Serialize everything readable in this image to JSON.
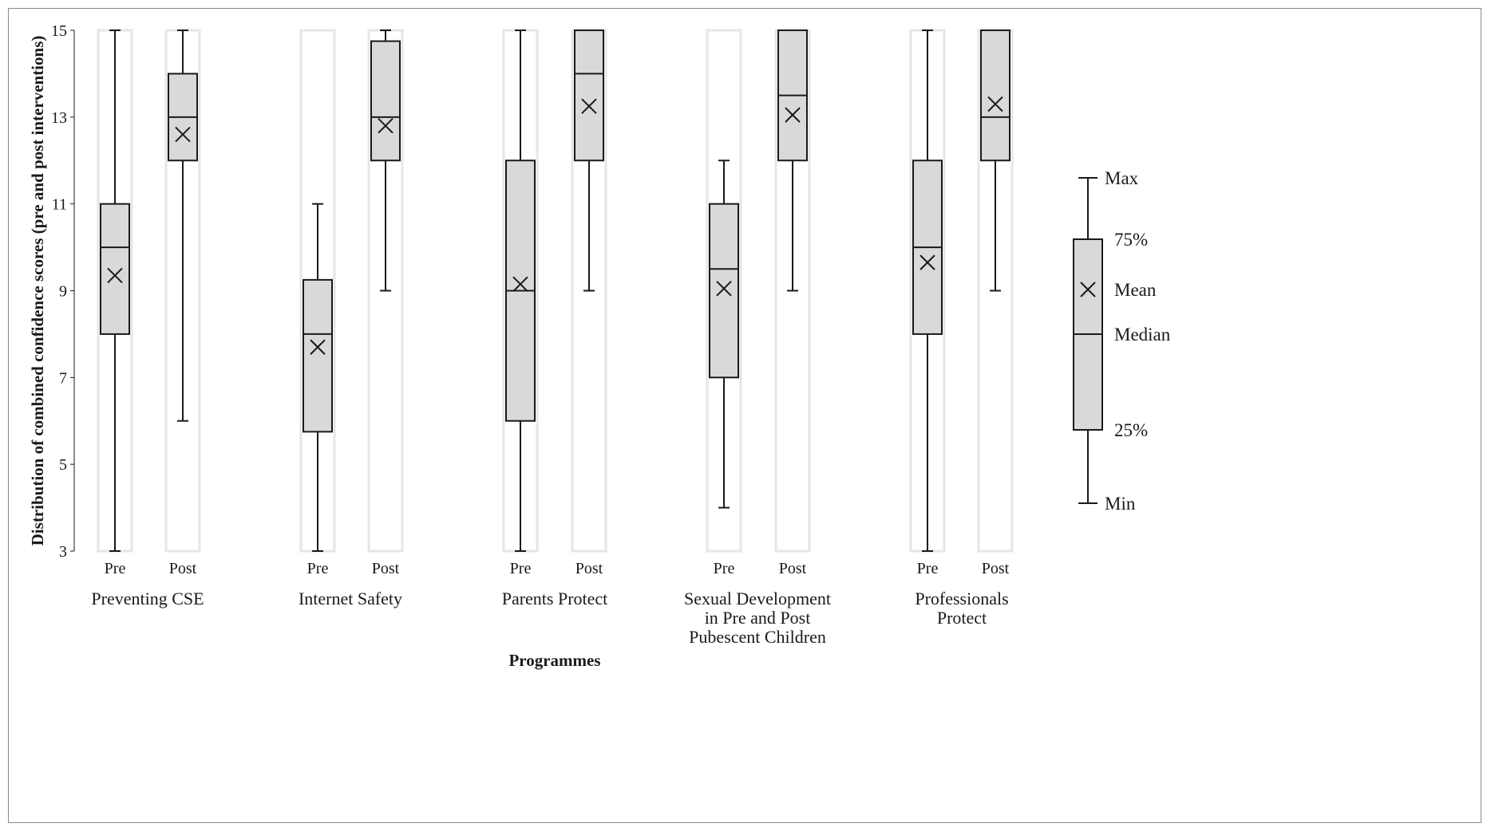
{
  "chart_data": {
    "type": "boxplot",
    "ylabel": "Distribution of combined confidence scores (pre and post interventions)",
    "xlabel": "Programmes",
    "ylim": [
      3,
      15
    ],
    "yticks": [
      3,
      5,
      7,
      9,
      11,
      13,
      15
    ],
    "groups": [
      {
        "label": [
          "Preventing CSE"
        ],
        "boxes": [
          {
            "label": "Pre",
            "min": 3,
            "q1": 8,
            "median": 10,
            "q3": 11,
            "max": 15,
            "mean": 9.35
          },
          {
            "label": "Post",
            "min": 6,
            "q1": 12,
            "median": 13,
            "q3": 14,
            "max": 15,
            "mean": 12.6
          }
        ]
      },
      {
        "label": [
          "Internet Safety"
        ],
        "boxes": [
          {
            "label": "Pre",
            "min": 3,
            "q1": 5.75,
            "median": 8,
            "q3": 9.25,
            "max": 11,
            "mean": 7.7
          },
          {
            "label": "Post",
            "min": 9,
            "q1": 12,
            "median": 13,
            "q3": 14.75,
            "max": 15,
            "mean": 12.8
          }
        ]
      },
      {
        "label": [
          "Parents Protect"
        ],
        "boxes": [
          {
            "label": "Pre",
            "min": 3,
            "q1": 6,
            "median": 9,
            "q3": 12,
            "max": 15,
            "mean": 9.15
          },
          {
            "label": "Post",
            "min": 9,
            "q1": 12,
            "median": 14,
            "q3": 15,
            "max": 15,
            "mean": 13.25
          }
        ]
      },
      {
        "label": [
          "Sexual Development",
          "in Pre and Post",
          "Pubescent Children"
        ],
        "boxes": [
          {
            "label": "Pre",
            "min": 4,
            "q1": 7,
            "median": 9.5,
            "q3": 11,
            "max": 12,
            "mean": 9.05
          },
          {
            "label": "Post",
            "min": 9,
            "q1": 12,
            "median": 13.5,
            "q3": 15,
            "max": 15,
            "mean": 13.05
          }
        ]
      },
      {
        "label": [
          "Professionals",
          "Protect"
        ],
        "boxes": [
          {
            "label": "Pre",
            "min": 3,
            "q1": 8,
            "median": 10,
            "q3": 12,
            "max": 15,
            "mean": 9.65
          },
          {
            "label": "Post",
            "min": 9,
            "q1": 12,
            "median": 13,
            "q3": 15,
            "max": 15,
            "mean": 13.3
          }
        ]
      }
    ],
    "legend": {
      "position": "right",
      "labels": {
        "max": "Max",
        "q3": "75%",
        "mean": "Mean",
        "median": "Median",
        "q1": "25%",
        "min": "Min"
      }
    },
    "colors": {
      "box_fill": "#d9d9d9",
      "stroke": "#1a1a1a",
      "shadow": "#e6e6e6",
      "frame": "#8a8a8a"
    }
  }
}
